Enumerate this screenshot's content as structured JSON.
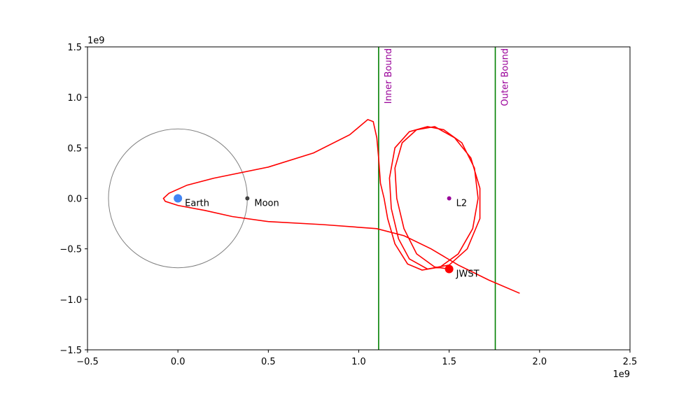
{
  "chart_data": {
    "type": "trajectory",
    "x_offset_label": "1e9",
    "y_offset_label": "1e9",
    "xlim": [
      -500000000.0,
      2500000000.0
    ],
    "ylim": [
      -1500000000.0,
      1500000000.0
    ],
    "xticks": [
      {
        "value": -500000000.0,
        "label": "−0.5"
      },
      {
        "value": 0,
        "label": "0.0"
      },
      {
        "value": 500000000.0,
        "label": "0.5"
      },
      {
        "value": 1000000000.0,
        "label": "1.0"
      },
      {
        "value": 1500000000.0,
        "label": "1.5"
      },
      {
        "value": 2000000000.0,
        "label": "2.0"
      },
      {
        "value": 2500000000.0,
        "label": "2.5"
      }
    ],
    "yticks": [
      {
        "value": -1500000000.0,
        "label": "−1.5"
      },
      {
        "value": -1000000000.0,
        "label": "−1.0"
      },
      {
        "value": -500000000.0,
        "label": "−0.5"
      },
      {
        "value": 0,
        "label": "0.0"
      },
      {
        "value": 500000000.0,
        "label": "0.5"
      },
      {
        "value": 1000000000.0,
        "label": "1.0"
      },
      {
        "value": 1500000000.0,
        "label": "1.5"
      }
    ],
    "moon_orbit_radius": 384000000.0,
    "orbit_color": "#808080",
    "vlines": [
      {
        "x": 1110000000.0,
        "label": "Inner Bound",
        "color": "#008000"
      },
      {
        "x": 1755000000.0,
        "label": "Outer Bound",
        "color": "#008000"
      }
    ],
    "bound_label_color": "#990099",
    "trajectory": {
      "color": "#ff0000",
      "x": [
        1890000000.0,
        1720000000.0,
        1550000000.0,
        1400000000.0,
        1250000000.0,
        1100000000.0,
        800000000.0,
        500000000.0,
        300000000.0,
        150000000.0,
        0,
        -70000000.0,
        -80000000.0,
        -50000000.0,
        50000000.0,
        200000000.0,
        500000000.0,
        750000000.0,
        950000000.0,
        1050000000.0,
        1080000000.0,
        1100000000.0,
        1110000000.0,
        1120000000.0,
        1140000000.0,
        1160000000.0,
        1200000000.0,
        1270000000.0,
        1350000000.0,
        1450000000.0,
        1550000000.0,
        1630000000.0,
        1660000000.0,
        1640000000.0,
        1570000000.0,
        1470000000.0,
        1380000000.0,
        1280000000.0,
        1200000000.0,
        1170000000.0,
        1180000000.0,
        1220000000.0,
        1280000000.0,
        1380000000.0,
        1500000000.0,
        1600000000.0,
        1670000000.0,
        1670000000.0,
        1620000000.0,
        1530000000.0,
        1420000000.0,
        1320000000.0,
        1240000000.0,
        1200000000.0,
        1210000000.0,
        1250000000.0,
        1320000000.0,
        1420000000.0,
        1500000000.0
      ],
      "y": [
        -940000000.0,
        -810000000.0,
        -660000000.0,
        -500000000.0,
        -370000000.0,
        -300000000.0,
        -260000000.0,
        -230000000.0,
        -180000000.0,
        -120000000.0,
        -70000000.0,
        -30000000.0,
        0,
        50000000.0,
        130000000.0,
        200000000.0,
        310000000.0,
        450000000.0,
        630000000.0,
        780000000.0,
        760000000.0,
        600000000.0,
        400000000.0,
        150000000.0,
        0,
        -200000000.0,
        -450000000.0,
        -650000000.0,
        -710000000.0,
        -680000000.0,
        -550000000.0,
        -300000000.0,
        0,
        300000000.0,
        550000000.0,
        680000000.0,
        710000000.0,
        660000000.0,
        500000000.0,
        200000000.0,
        -100000000.0,
        -400000000.0,
        -600000000.0,
        -700000000.0,
        -660000000.0,
        -500000000.0,
        -200000000.0,
        100000000.0,
        400000000.0,
        600000000.0,
        710000000.0,
        680000000.0,
        550000000.0,
        300000000.0,
        0,
        -300000000.0,
        -550000000.0,
        -680000000.0,
        -700000000.0
      ]
    },
    "points": [
      {
        "name": "Earth",
        "x": 0,
        "y": 0,
        "color": "#4285f4",
        "size": 6
      },
      {
        "name": "Moon",
        "x": 384000000.0,
        "y": 0,
        "color": "#404040",
        "size": 3
      },
      {
        "name": "L2",
        "x": 1500000000.0,
        "y": 0,
        "color": "#990099",
        "size": 3
      },
      {
        "name": "JWST",
        "x": 1500000000.0,
        "y": -700000000.0,
        "color": "#ff0000",
        "size": 6
      }
    ]
  }
}
